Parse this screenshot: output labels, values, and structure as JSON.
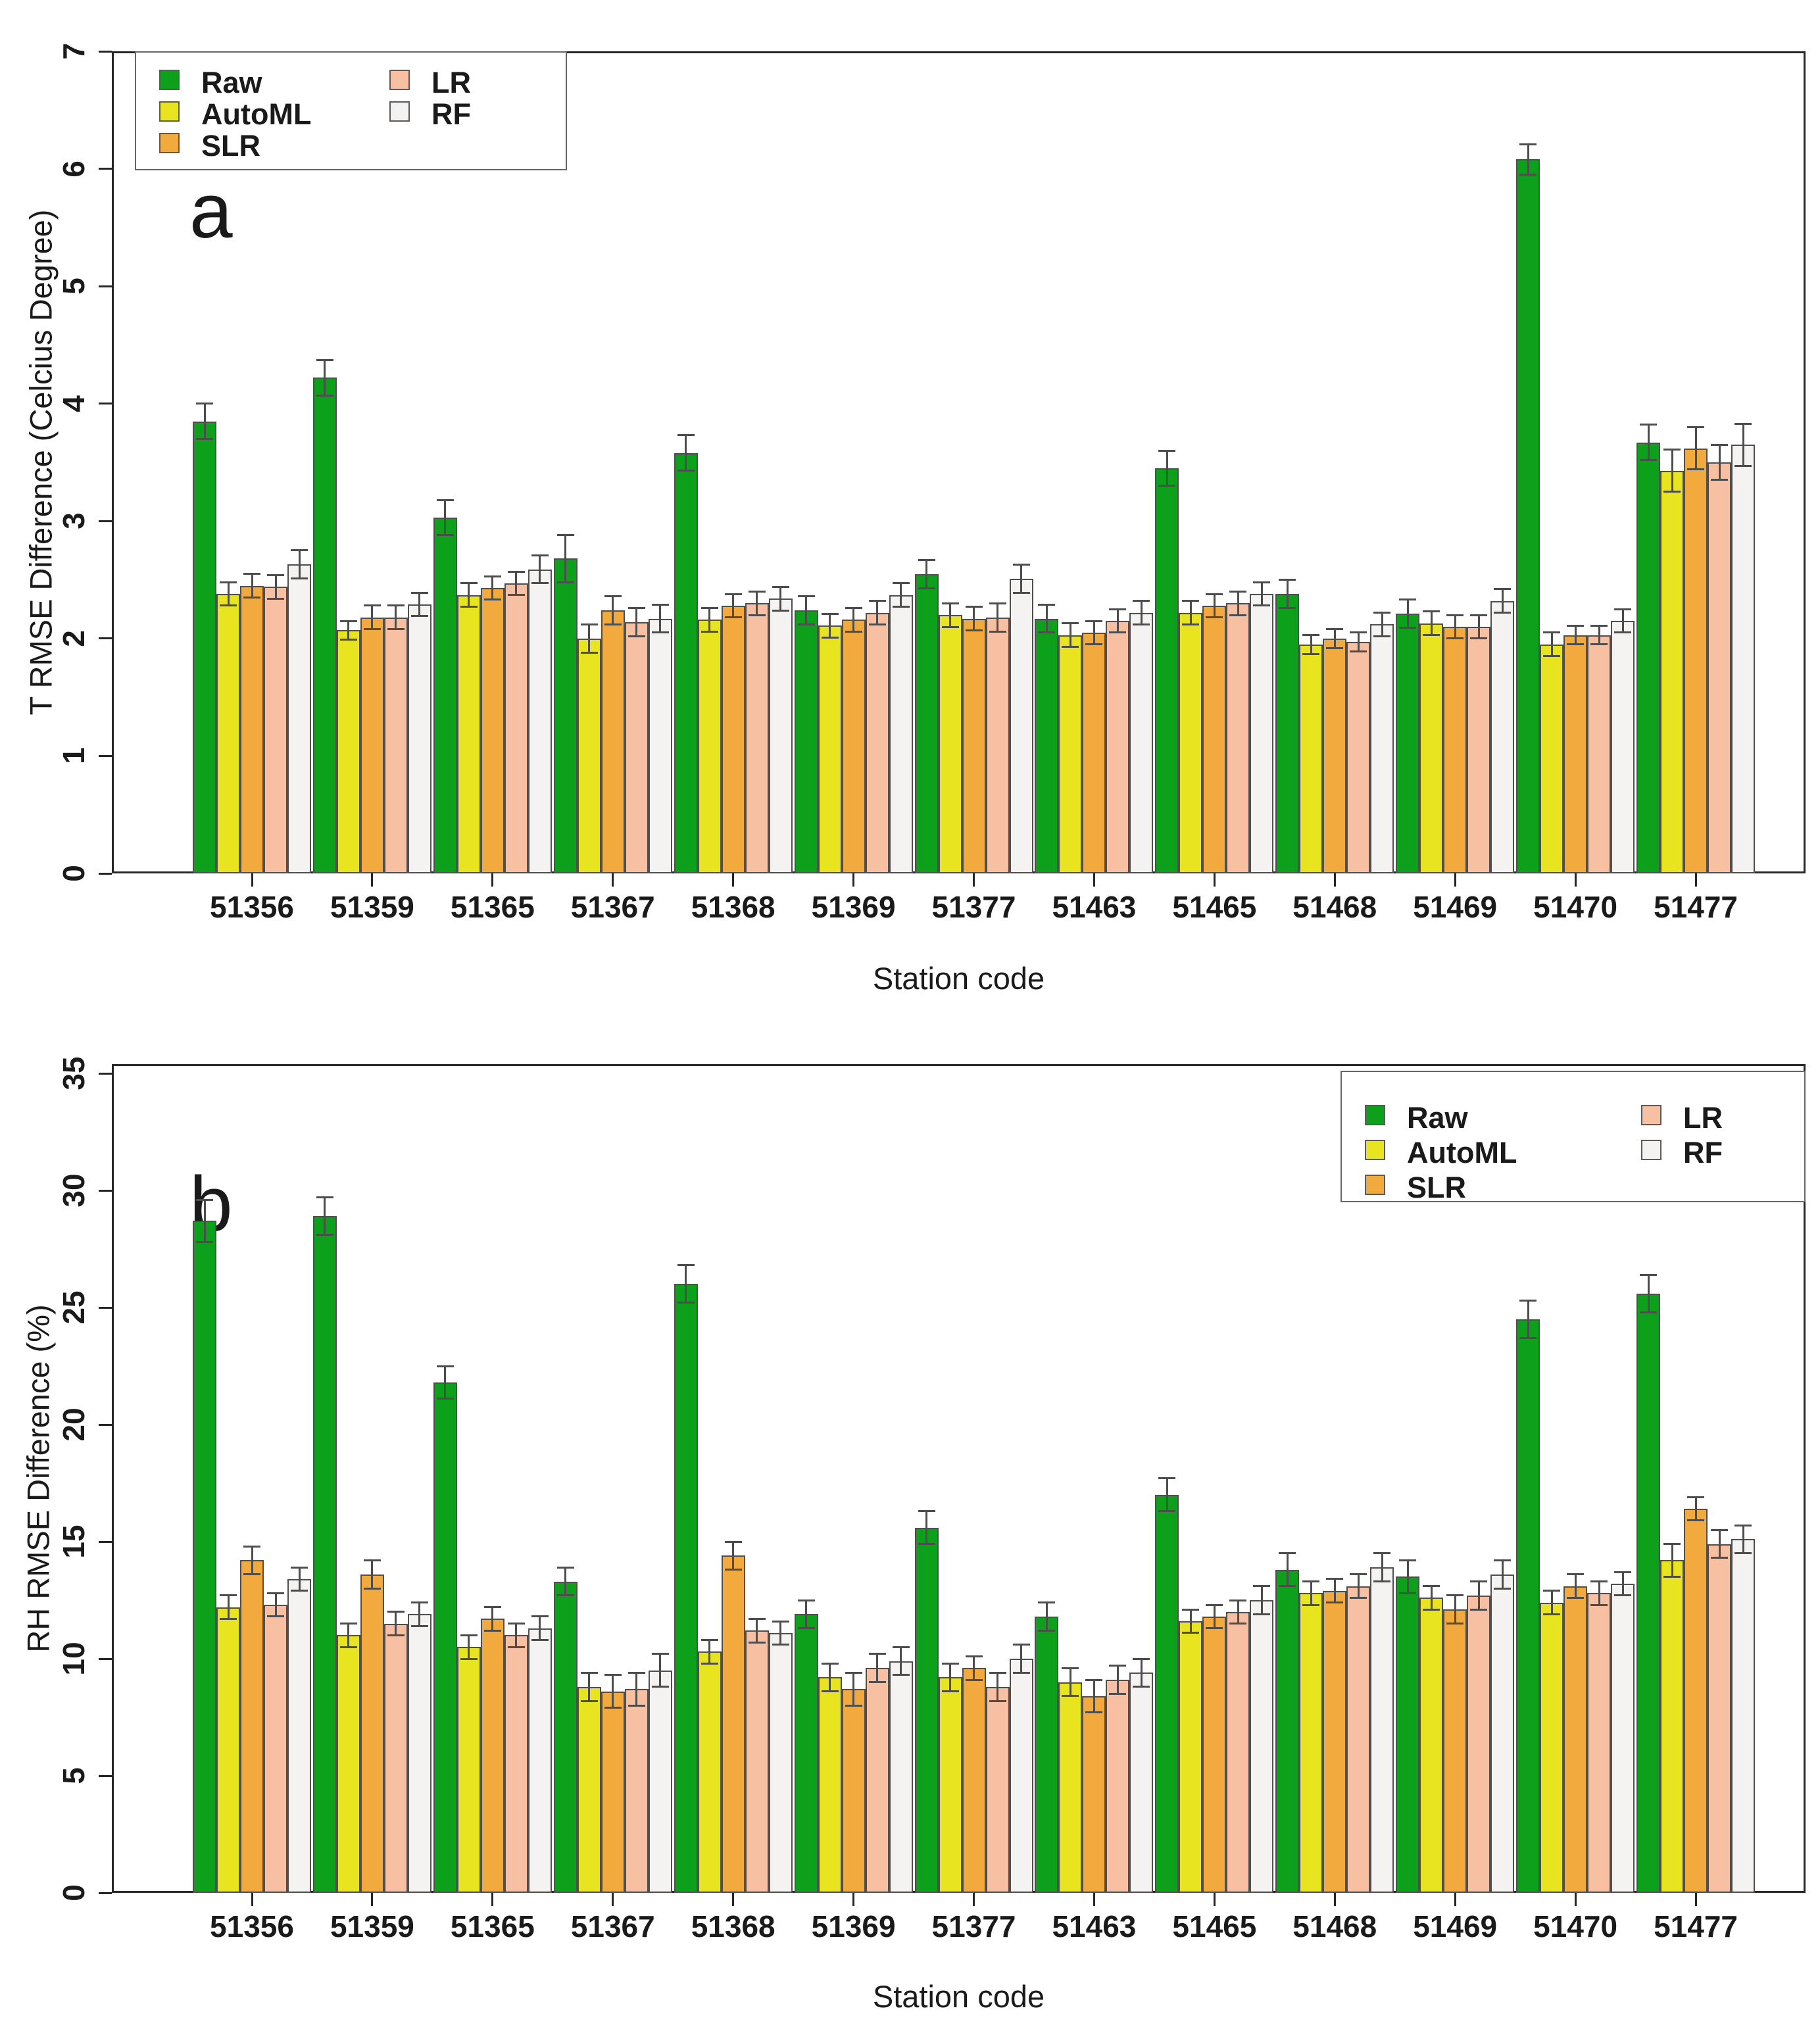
{
  "figure_title": "",
  "chart_data": [
    {
      "type": "bar",
      "panel_label": "a",
      "xlabel": "Station code",
      "ylabel": "T RMSE Difference (Celcius Degree)",
      "ylim": [
        0,
        7
      ],
      "yticks": [
        0,
        1,
        2,
        3,
        4,
        5,
        6,
        7
      ],
      "grid": false,
      "legend_position": "top-left",
      "legend_labels": [
        "Raw",
        "AutoML",
        "SLR",
        "LR",
        "RF"
      ],
      "categories": [
        "51356",
        "51359",
        "51365",
        "51367",
        "51368",
        "51369",
        "51377",
        "51463",
        "51465",
        "51468",
        "51469",
        "51470",
        "51477"
      ],
      "series": [
        {
          "name": "Raw",
          "color": "#0da11b",
          "values": [
            3.85,
            4.22,
            3.03,
            2.68,
            3.58,
            2.24,
            2.55,
            2.17,
            3.45,
            2.38,
            2.21,
            6.08,
            3.67
          ],
          "errors": [
            0.15,
            0.15,
            0.15,
            0.2,
            0.15,
            0.12,
            0.12,
            0.12,
            0.15,
            0.12,
            0.12,
            0.13,
            0.15
          ]
        },
        {
          "name": "AutoML",
          "color": "#e9e420",
          "values": [
            2.38,
            2.07,
            2.37,
            2.0,
            2.16,
            2.11,
            2.2,
            2.03,
            2.22,
            1.95,
            2.13,
            1.95,
            3.43
          ],
          "errors": [
            0.1,
            0.08,
            0.1,
            0.12,
            0.1,
            0.1,
            0.1,
            0.1,
            0.1,
            0.08,
            0.1,
            0.1,
            0.18
          ]
        },
        {
          "name": "SLR",
          "color": "#f2a93e",
          "values": [
            2.45,
            2.18,
            2.43,
            2.24,
            2.28,
            2.16,
            2.17,
            2.05,
            2.28,
            2.0,
            2.1,
            2.03,
            3.62
          ],
          "errors": [
            0.1,
            0.1,
            0.1,
            0.12,
            0.1,
            0.1,
            0.1,
            0.1,
            0.1,
            0.08,
            0.1,
            0.08,
            0.18
          ]
        },
        {
          "name": "LR",
          "color": "#f8c0a2",
          "values": [
            2.44,
            2.18,
            2.47,
            2.14,
            2.3,
            2.22,
            2.18,
            2.15,
            2.3,
            1.97,
            2.1,
            2.03,
            3.5
          ],
          "errors": [
            0.1,
            0.1,
            0.1,
            0.12,
            0.1,
            0.1,
            0.12,
            0.1,
            0.1,
            0.08,
            0.1,
            0.08,
            0.15
          ]
        },
        {
          "name": "RF",
          "color": "#f4f3f1",
          "values": [
            2.63,
            2.29,
            2.59,
            2.17,
            2.34,
            2.37,
            2.51,
            2.22,
            2.38,
            2.12,
            2.32,
            2.15,
            3.65
          ],
          "errors": [
            0.12,
            0.1,
            0.12,
            0.12,
            0.1,
            0.1,
            0.12,
            0.1,
            0.1,
            0.1,
            0.1,
            0.1,
            0.18
          ]
        }
      ]
    },
    {
      "type": "bar",
      "panel_label": "b",
      "xlabel": "Station code",
      "ylabel": "RH RMSE Difference (%)",
      "ylim": [
        0,
        35
      ],
      "yticks": [
        0,
        5,
        10,
        15,
        20,
        25,
        30,
        35
      ],
      "grid": false,
      "legend_position": "top-right",
      "legend_labels": [
        "Raw",
        "AutoML",
        "SLR",
        "LR",
        "RF"
      ],
      "categories": [
        "51356",
        "51359",
        "51365",
        "51367",
        "51368",
        "51369",
        "51377",
        "51463",
        "51465",
        "51468",
        "51469",
        "51470",
        "51477"
      ],
      "series": [
        {
          "name": "Raw",
          "color": "#0da11b",
          "values": [
            28.7,
            28.9,
            21.8,
            13.3,
            26.0,
            11.9,
            15.6,
            11.8,
            17.0,
            13.8,
            13.5,
            24.5,
            25.6
          ],
          "errors": [
            0.9,
            0.8,
            0.7,
            0.6,
            0.8,
            0.6,
            0.7,
            0.6,
            0.7,
            0.7,
            0.7,
            0.8,
            0.8
          ]
        },
        {
          "name": "AutoML",
          "color": "#e9e420",
          "values": [
            12.2,
            11.0,
            10.5,
            8.8,
            10.3,
            9.2,
            9.2,
            9.0,
            11.6,
            12.8,
            12.6,
            12.4,
            14.2
          ],
          "errors": [
            0.5,
            0.5,
            0.5,
            0.6,
            0.5,
            0.6,
            0.6,
            0.6,
            0.5,
            0.5,
            0.5,
            0.5,
            0.7
          ]
        },
        {
          "name": "SLR",
          "color": "#f2a93e",
          "values": [
            14.2,
            13.6,
            11.7,
            8.6,
            14.4,
            8.7,
            9.6,
            8.4,
            11.8,
            12.9,
            12.1,
            13.1,
            16.4
          ],
          "errors": [
            0.6,
            0.6,
            0.5,
            0.7,
            0.6,
            0.7,
            0.5,
            0.7,
            0.5,
            0.5,
            0.6,
            0.5,
            0.5
          ]
        },
        {
          "name": "LR",
          "color": "#f8c0a2",
          "values": [
            12.3,
            11.5,
            11.0,
            8.7,
            11.2,
            9.6,
            8.8,
            9.1,
            12.0,
            13.1,
            12.7,
            12.8,
            14.9
          ],
          "errors": [
            0.5,
            0.5,
            0.5,
            0.7,
            0.5,
            0.6,
            0.6,
            0.6,
            0.5,
            0.5,
            0.6,
            0.5,
            0.6
          ]
        },
        {
          "name": "RF",
          "color": "#f4f3f1",
          "values": [
            13.4,
            11.9,
            11.3,
            9.5,
            11.1,
            9.9,
            10.0,
            9.4,
            12.5,
            13.9,
            13.6,
            13.2,
            15.1
          ],
          "errors": [
            0.5,
            0.5,
            0.5,
            0.7,
            0.5,
            0.6,
            0.6,
            0.6,
            0.6,
            0.6,
            0.6,
            0.5,
            0.6
          ]
        }
      ]
    }
  ]
}
